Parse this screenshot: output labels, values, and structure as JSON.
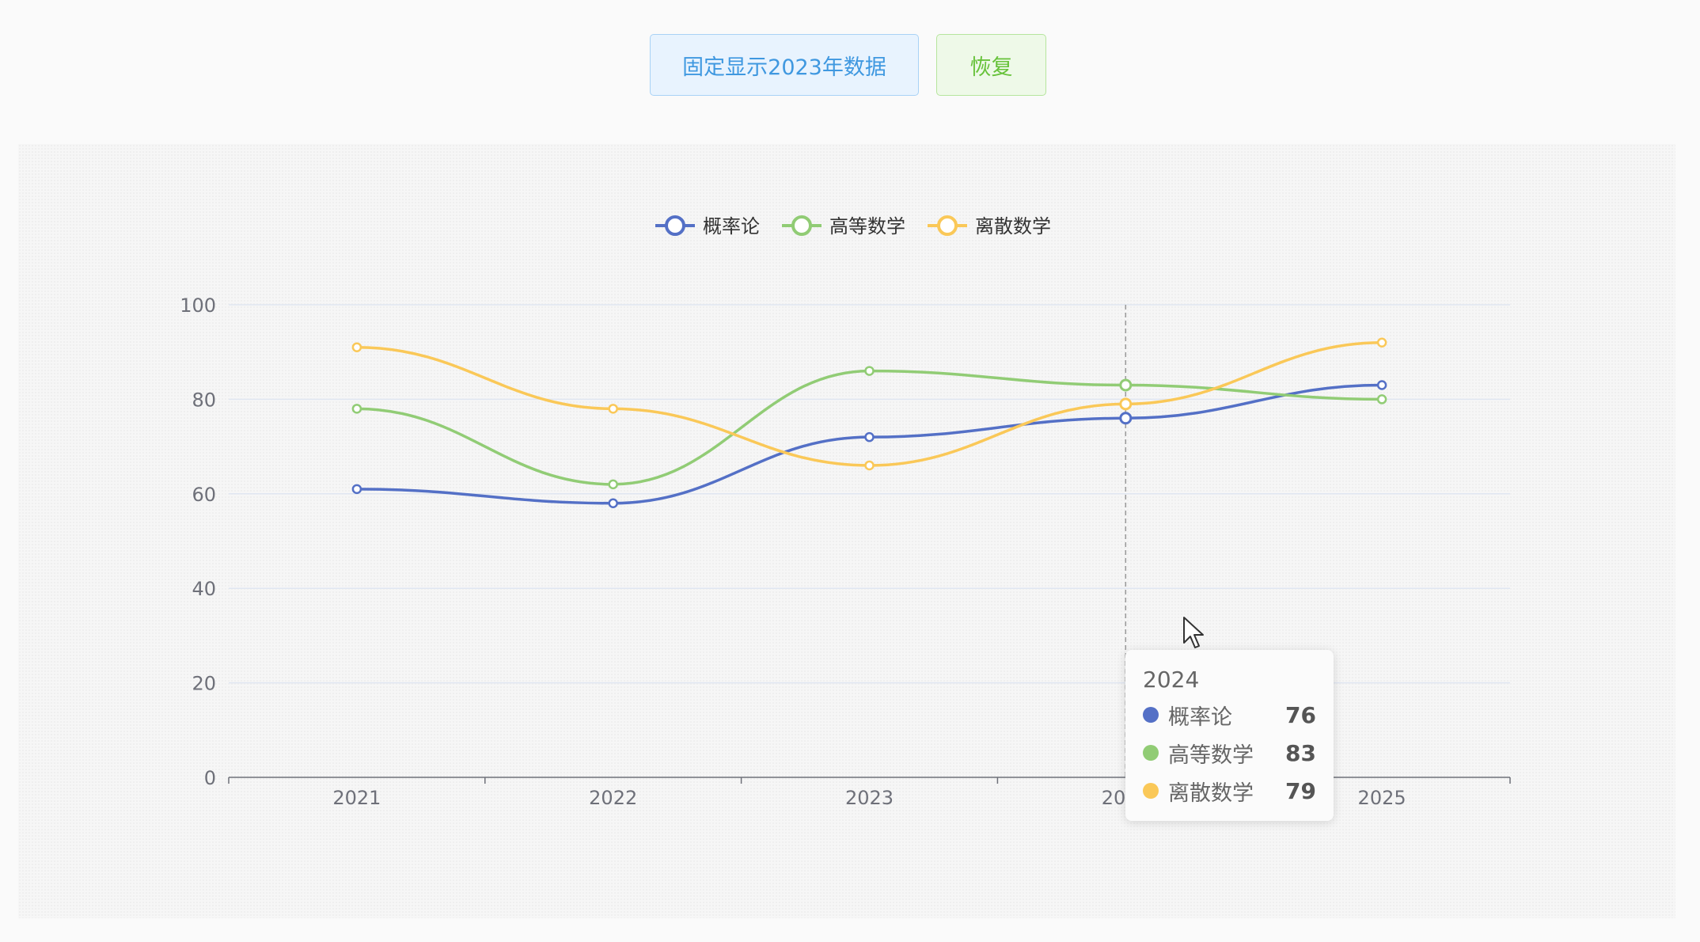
{
  "buttons": {
    "fix_label": "固定显示2023年数据",
    "restore_label": "恢复"
  },
  "colors": {
    "blue": "#5470c6",
    "green": "#91cc75",
    "yellow": "#fac858",
    "axis": "#6e7079",
    "grid": "#e0e6f1"
  },
  "chart_data": {
    "type": "line",
    "smooth": true,
    "categories": [
      "2021",
      "2022",
      "2023",
      "2024",
      "2025"
    ],
    "series": [
      {
        "name": "概率论",
        "values": [
          61,
          58,
          72,
          76,
          83
        ],
        "color": "#5470c6"
      },
      {
        "name": "高等数学",
        "values": [
          78,
          62,
          86,
          83,
          80
        ],
        "color": "#91cc75"
      },
      {
        "name": "离散数学",
        "values": [
          91,
          78,
          66,
          79,
          92
        ],
        "color": "#fac858"
      }
    ],
    "ylim": [
      0,
      100
    ],
    "yticks": [
      0,
      20,
      40,
      60,
      80,
      100
    ],
    "grid": true,
    "legend_position": "top-center",
    "highlighted_category": "2024"
  },
  "tooltip": {
    "title": "2024",
    "rows": [
      {
        "name": "概率论",
        "value": "76",
        "color": "#5470c6"
      },
      {
        "name": "高等数学",
        "value": "83",
        "color": "#91cc75"
      },
      {
        "name": "离散数学",
        "value": "79",
        "color": "#fac858"
      }
    ]
  }
}
